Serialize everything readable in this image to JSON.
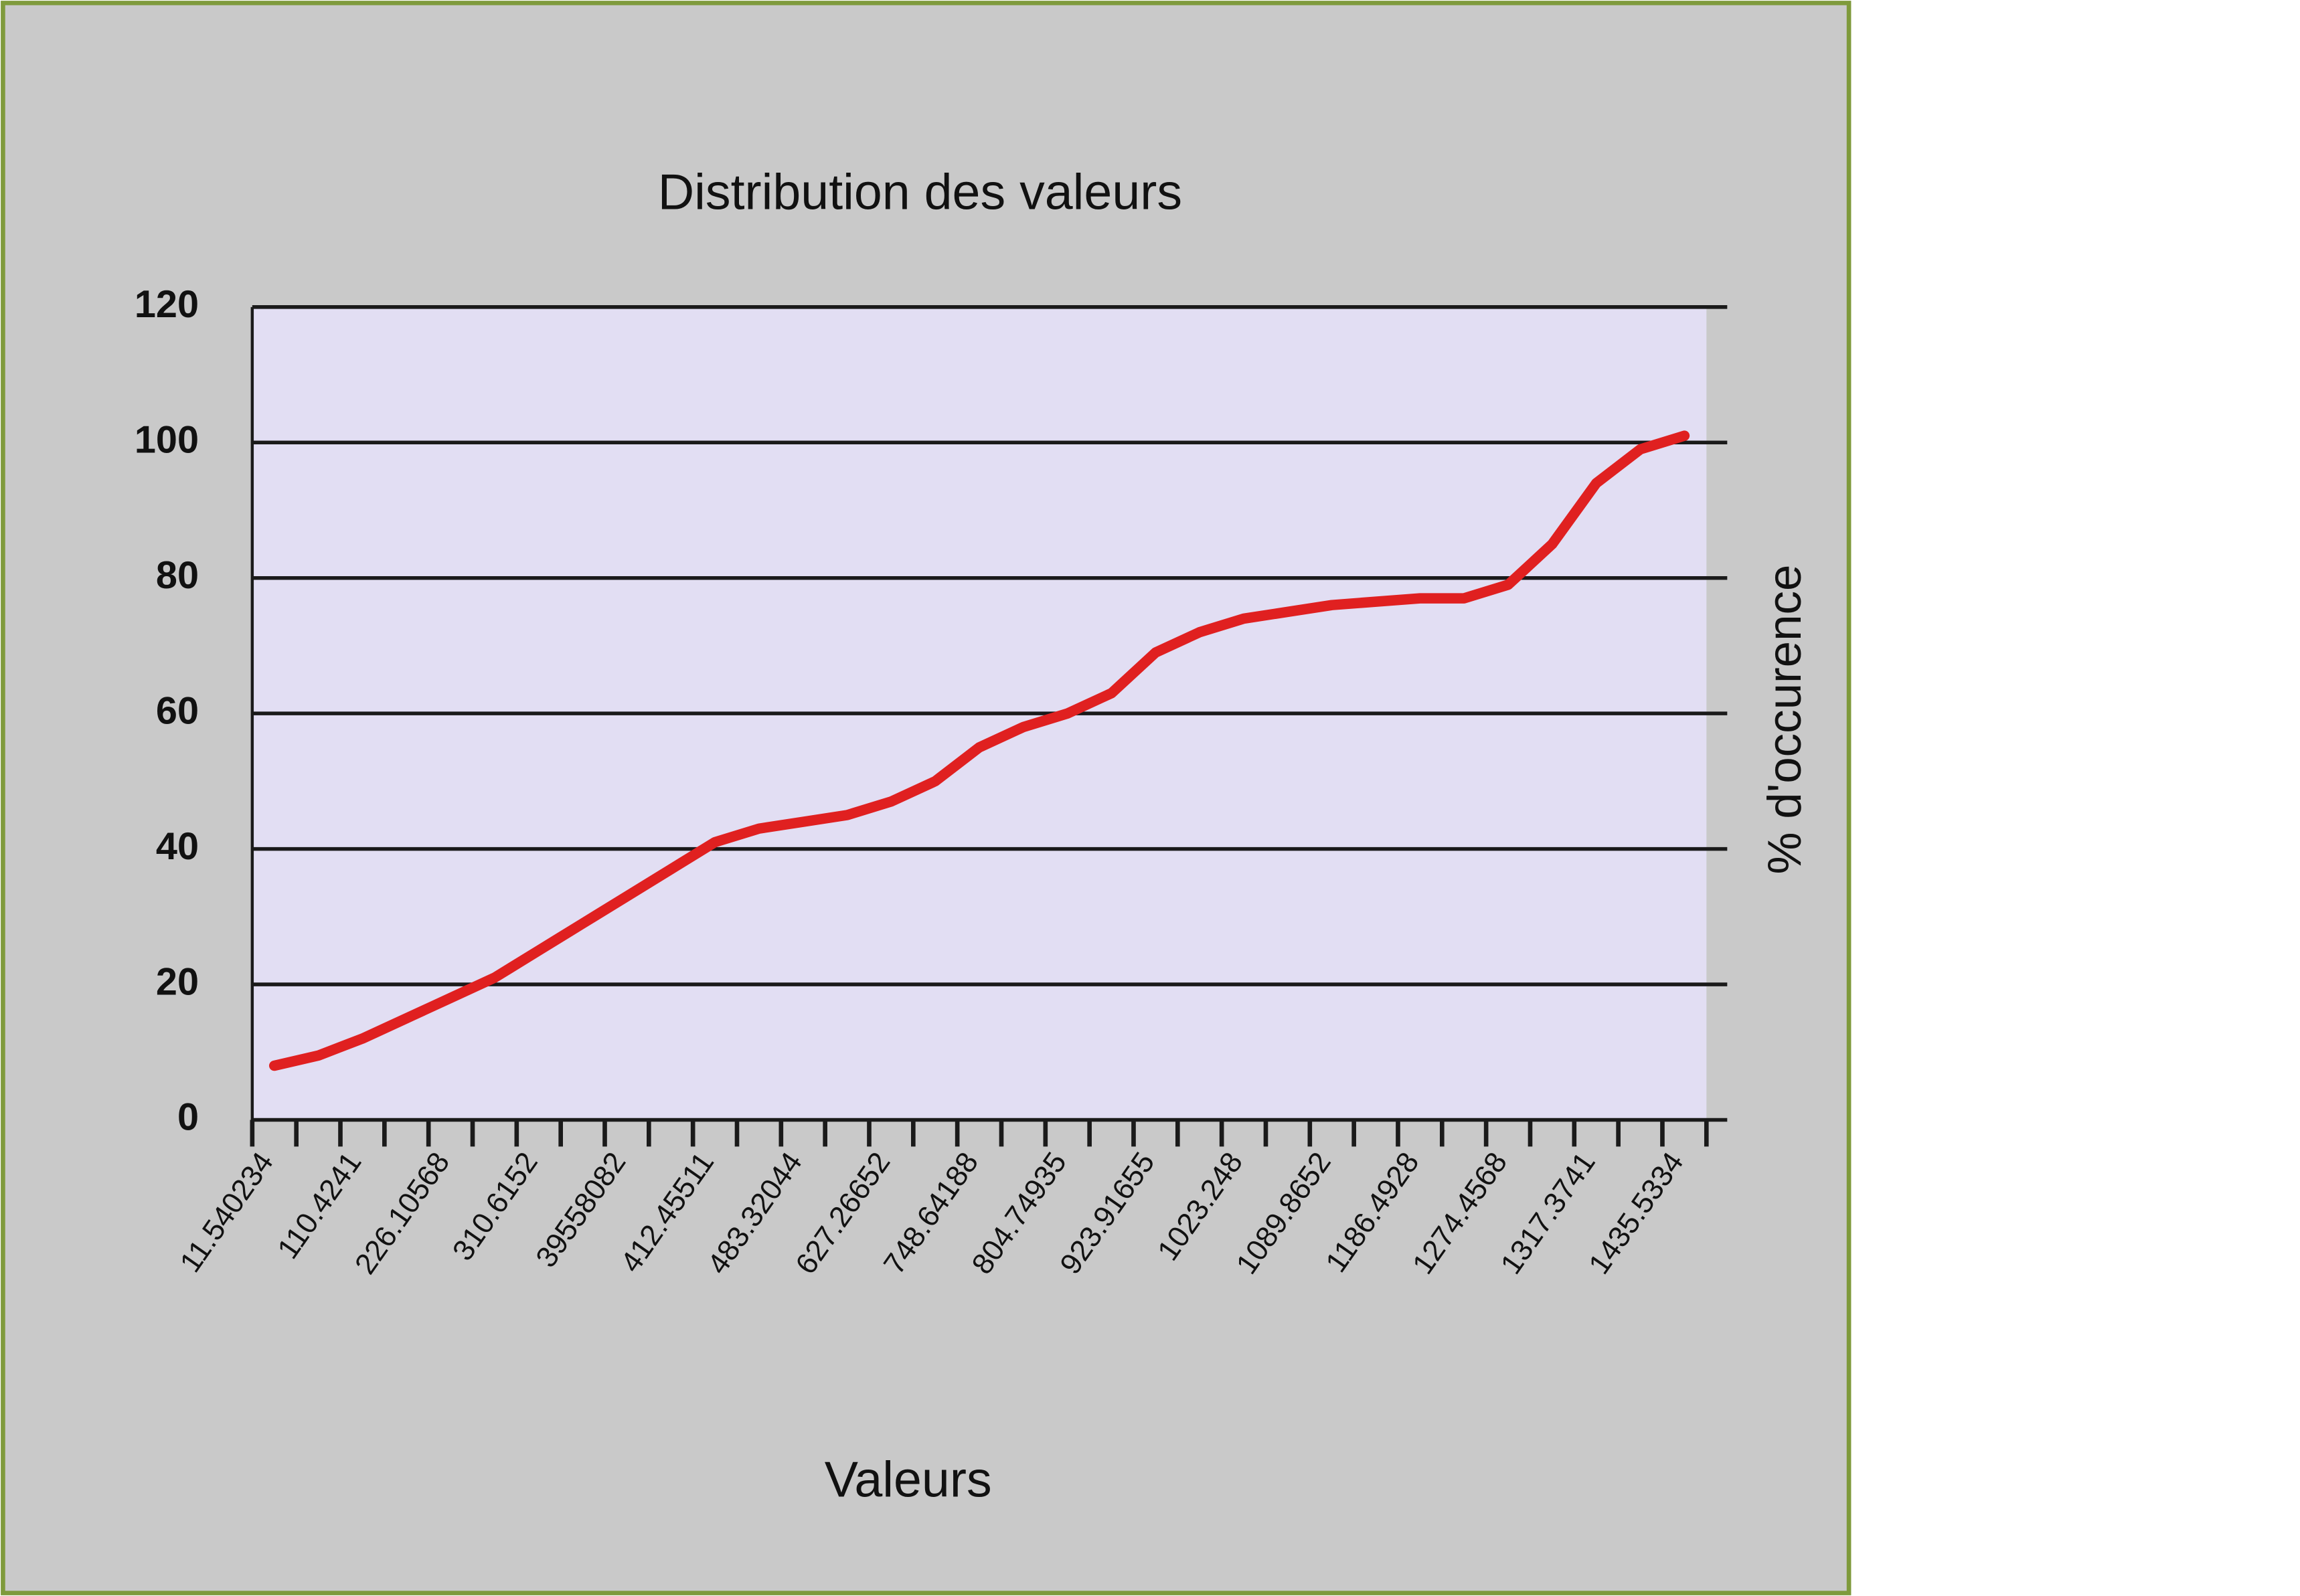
{
  "chart_data": {
    "type": "line",
    "title": "Distribution des valeurs",
    "x_label": "Valeurs",
    "y_label": "% d'occurence",
    "categories": [
      "11.540234",
      null,
      "110.4241",
      null,
      "226.10568",
      null,
      "310.6152",
      null,
      "39558082",
      null,
      "412.45511",
      null,
      "483.32044",
      null,
      "627.26652",
      null,
      "748.64188",
      null,
      "804.74935",
      null,
      "923.91655",
      null,
      "1023.248",
      null,
      "1089.8652",
      null,
      "1186.4928",
      null,
      "1274.4568",
      null,
      "1317.3741",
      null,
      "1435.5334"
    ],
    "series": [
      {
        "color": "#e02020",
        "values": [
          8,
          9.5,
          12,
          15,
          18,
          21,
          25,
          29,
          33,
          37,
          41,
          43,
          44,
          45,
          47,
          50,
          55,
          58,
          60,
          63,
          69,
          72,
          74,
          75,
          76,
          76.5,
          77,
          77,
          79,
          85,
          94,
          99,
          101
        ]
      }
    ],
    "ylim": [
      0,
      120
    ],
    "yticks": [
      0,
      20,
      40,
      60,
      80,
      100,
      120
    ],
    "grid": true
  }
}
